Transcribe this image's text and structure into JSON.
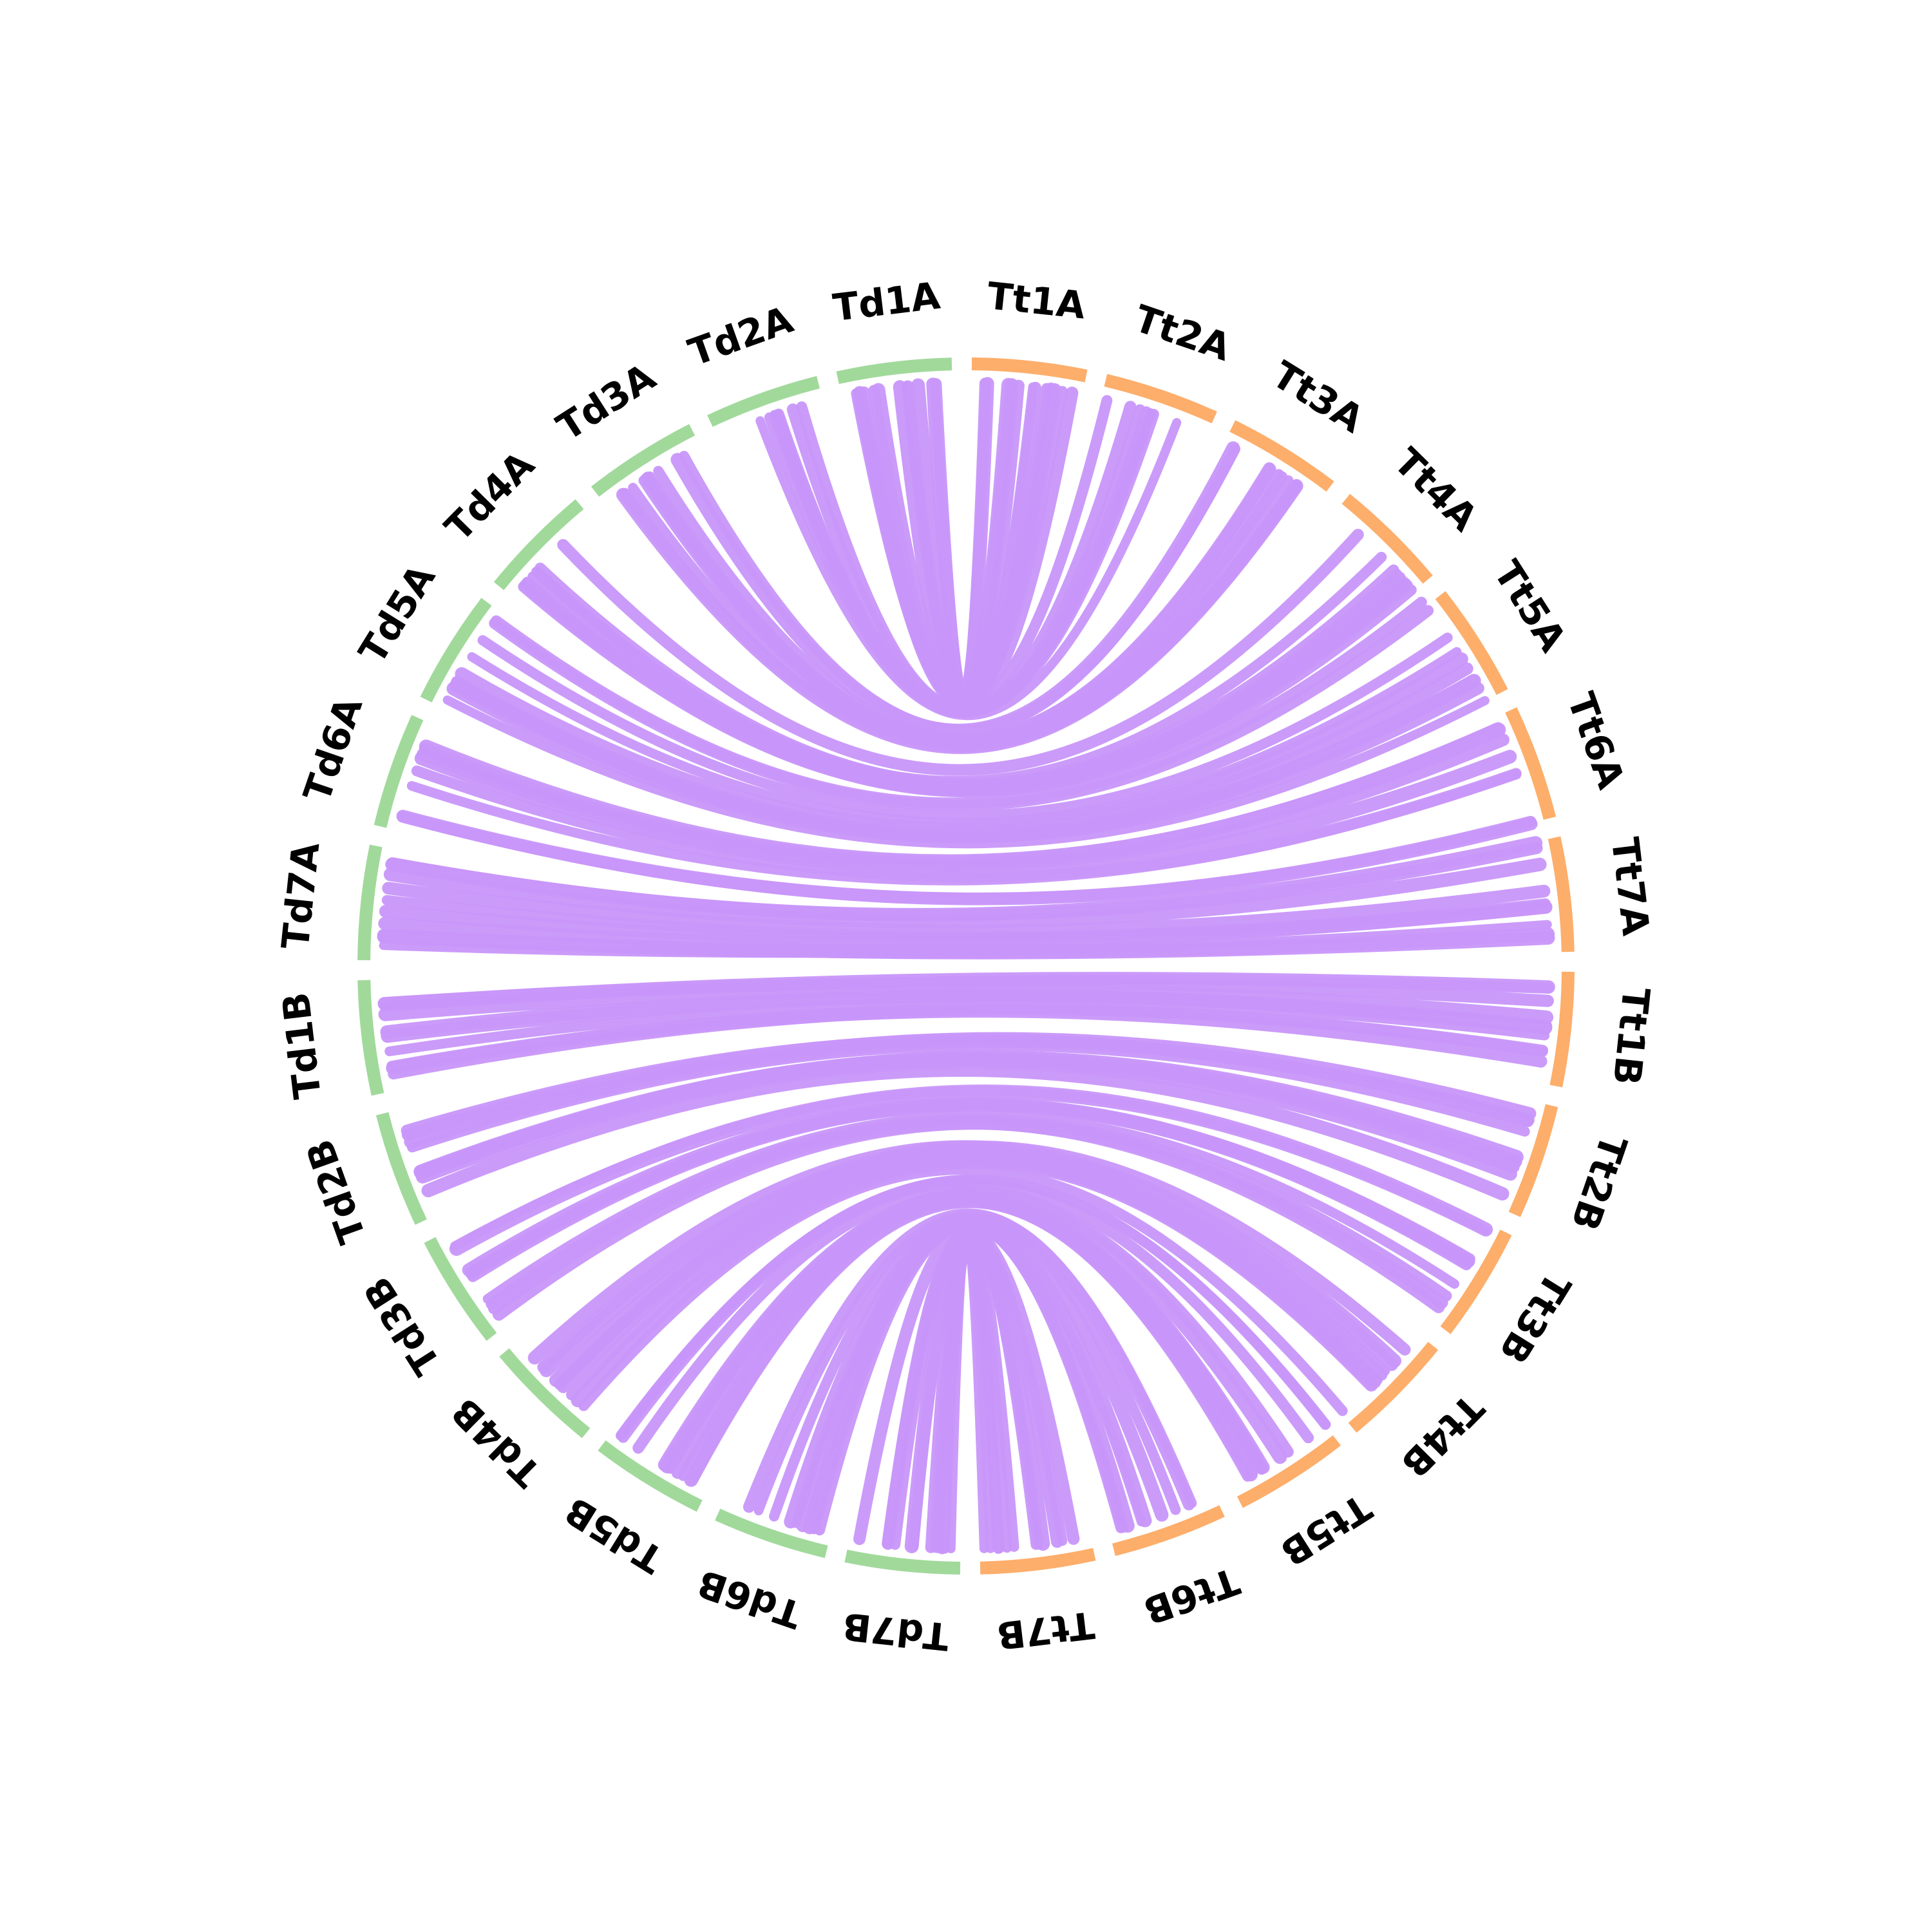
{
  "chart_data": {
    "type": "circos",
    "title": "",
    "grid": false,
    "legend": "none",
    "genome_colors": {
      "Td": "#a1d99b",
      "Tt": "#fdae6b"
    },
    "link_color": "#c896fa",
    "segments": [
      {
        "name": "Td1A",
        "genome": "Td"
      },
      {
        "name": "Td2A",
        "genome": "Td"
      },
      {
        "name": "Td3A",
        "genome": "Td"
      },
      {
        "name": "Td4A",
        "genome": "Td"
      },
      {
        "name": "Td5A",
        "genome": "Td"
      },
      {
        "name": "Td6A",
        "genome": "Td"
      },
      {
        "name": "Td7A",
        "genome": "Td"
      },
      {
        "name": "Td1B",
        "genome": "Td"
      },
      {
        "name": "Td2B",
        "genome": "Td"
      },
      {
        "name": "Td3B",
        "genome": "Td"
      },
      {
        "name": "Td4B",
        "genome": "Td"
      },
      {
        "name": "Td5B",
        "genome": "Td"
      },
      {
        "name": "Td6B",
        "genome": "Td"
      },
      {
        "name": "Td7B",
        "genome": "Td"
      },
      {
        "name": "Tt1A",
        "genome": "Tt"
      },
      {
        "name": "Tt2A",
        "genome": "Tt"
      },
      {
        "name": "Tt3A",
        "genome": "Tt"
      },
      {
        "name": "Tt4A",
        "genome": "Tt"
      },
      {
        "name": "Tt5A",
        "genome": "Tt"
      },
      {
        "name": "Tt6A",
        "genome": "Tt"
      },
      {
        "name": "Tt7A",
        "genome": "Tt"
      },
      {
        "name": "Tt1B",
        "genome": "Tt"
      },
      {
        "name": "Tt2B",
        "genome": "Tt"
      },
      {
        "name": "Tt3B",
        "genome": "Tt"
      },
      {
        "name": "Tt4B",
        "genome": "Tt"
      },
      {
        "name": "Tt5B",
        "genome": "Tt"
      },
      {
        "name": "Tt6B",
        "genome": "Tt"
      },
      {
        "name": "Tt7B",
        "genome": "Tt"
      }
    ],
    "links": [
      {
        "source": "Td1A",
        "target": "Tt1A",
        "count": 12
      },
      {
        "source": "Td2A",
        "target": "Tt2A",
        "count": 8
      },
      {
        "source": "Td3A",
        "target": "Tt3A",
        "count": 10
      },
      {
        "source": "Td4A",
        "target": "Tt4A",
        "count": 9
      },
      {
        "source": "Td5A",
        "target": "Tt5A",
        "count": 10
      },
      {
        "source": "Td6A",
        "target": "Tt6A",
        "count": 8
      },
      {
        "source": "Td7A",
        "target": "Tt7A",
        "count": 10
      },
      {
        "source": "Td1B",
        "target": "Tt1B",
        "count": 10
      },
      {
        "source": "Td2B",
        "target": "Tt2B",
        "count": 9
      },
      {
        "source": "Td3B",
        "target": "Tt3B",
        "count": 10
      },
      {
        "source": "Td4B",
        "target": "Tt4B",
        "count": 10
      },
      {
        "source": "Td5B",
        "target": "Tt5B",
        "count": 11
      },
      {
        "source": "Td6B",
        "target": "Tt6B",
        "count": 9
      },
      {
        "source": "Td7B",
        "target": "Tt7B",
        "count": 12
      }
    ]
  }
}
